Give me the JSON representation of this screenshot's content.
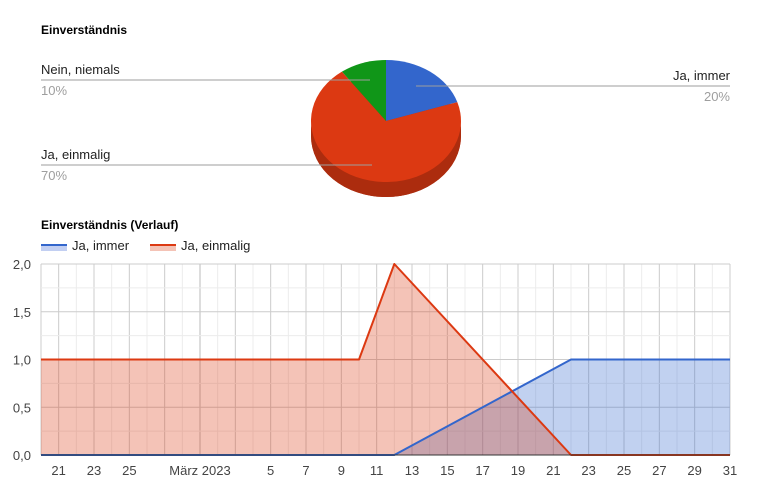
{
  "chart_data": [
    {
      "type": "pie",
      "title": "Einverständnis",
      "slices": [
        {
          "label": "Ja, immer",
          "percent_label": "20%",
          "value": 20,
          "color": "#3366cc"
        },
        {
          "label": "Ja, einmalig",
          "percent_label": "70%",
          "value": 70,
          "color": "#dc3912"
        },
        {
          "label": "Nein, niemals",
          "percent_label": "10%",
          "value": 10,
          "color": "#109618"
        }
      ],
      "style": "3d"
    },
    {
      "type": "area",
      "title": "Einverständnis (Verlauf)",
      "legend_position": "top-left",
      "grid": true,
      "ylim": [
        0,
        2
      ],
      "y_ticks": [
        "0,0",
        "0,5",
        "1,0",
        "1,5",
        "2,0"
      ],
      "x_ticks": [
        "21",
        "23",
        "25",
        "März 2023",
        "5",
        "7",
        "9",
        "11",
        "13",
        "15",
        "17",
        "19",
        "21",
        "23",
        "25",
        "27",
        "29",
        "31"
      ],
      "series": [
        {
          "name": "Ja, immer",
          "color": "#3366cc",
          "fill": "#c2cff2",
          "points": [
            [
              "2023-02-20",
              0
            ],
            [
              "2023-03-12",
              0
            ],
            [
              "2023-03-22",
              1
            ],
            [
              "2023-03-31",
              1
            ]
          ]
        },
        {
          "name": "Ja, einmalig",
          "color": "#dc3912",
          "fill": "#f4c3b6",
          "points": [
            [
              "2023-02-20",
              1
            ],
            [
              "2023-03-10",
              1
            ],
            [
              "2023-03-12",
              2
            ],
            [
              "2023-03-22",
              0
            ],
            [
              "2023-03-31",
              0
            ]
          ]
        }
      ]
    }
  ]
}
